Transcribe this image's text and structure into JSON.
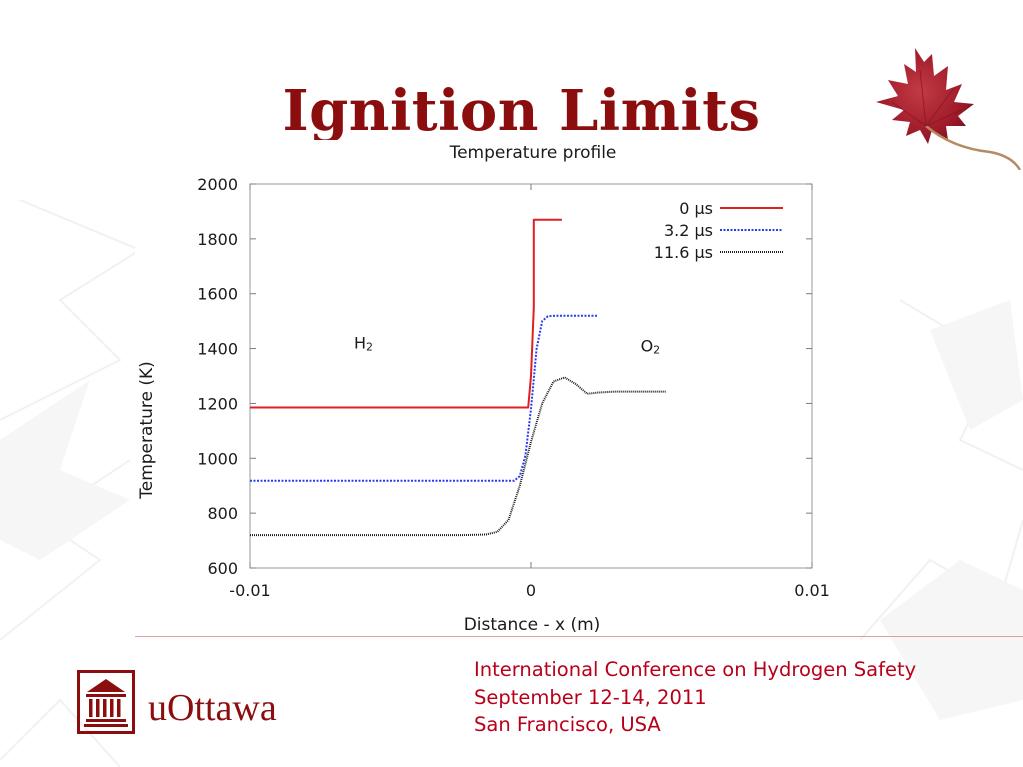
{
  "slide": {
    "title": "Ignition Limits",
    "conference_lines": [
      "International Conference on Hydrogen Safety",
      "September 12-14, 2011",
      "San Francisco, USA"
    ],
    "logo_text": "uOttawa",
    "accent_color": "#8b0d0d",
    "conference_text_color": "#b8001a"
  },
  "chart_data": {
    "type": "line",
    "title": "Temperature profile",
    "xlabel": "Distance - x (m)",
    "ylabel": "Temperature (K)",
    "xlim": [
      -0.01,
      0.01
    ],
    "ylim": [
      600,
      2000
    ],
    "xticks": [
      -0.01,
      0,
      0.01
    ],
    "xtick_labels": [
      "-0.01",
      "0",
      "0.01"
    ],
    "yticks": [
      600,
      800,
      1000,
      1200,
      1400,
      1600,
      1800,
      2000
    ],
    "ytick_labels": [
      "600",
      "800",
      "1000",
      "1200",
      "1400",
      "1600",
      "1800",
      "2000"
    ],
    "grid": false,
    "legend_position": "top-right",
    "annotations": [
      {
        "base": "H",
        "sub": "2",
        "x": -0.0063,
        "y": 1400
      },
      {
        "base": "O",
        "sub": "2",
        "x": 0.0039,
        "y": 1390
      }
    ],
    "series": [
      {
        "name": "0 µs",
        "color": "#e02020",
        "dash": "",
        "x": [
          -0.01,
          -0.0001,
          0.0,
          0.0001,
          0.0001,
          0.0011
        ],
        "y": [
          1185,
          1185,
          1300,
          1550,
          1870,
          1870
        ]
      },
      {
        "name": "3.2 µs",
        "color": "#2a3cf0",
        "dash": "2,1.5",
        "x": [
          -0.01,
          -0.0006,
          -0.0004,
          -0.0002,
          0.0,
          0.0002,
          0.0004,
          0.0006,
          0.0009,
          0.0024
        ],
        "y": [
          918,
          918,
          935,
          1010,
          1180,
          1400,
          1500,
          1518,
          1520,
          1520
        ]
      },
      {
        "name": "11.6 µs",
        "color": "#1a1a1a",
        "dash": "1,1",
        "x": [
          -0.01,
          -0.0024,
          -0.0016,
          -0.0012,
          -0.0008,
          -0.0004,
          0.0,
          0.0004,
          0.0008,
          0.0012,
          0.0016,
          0.002,
          0.0024,
          0.003,
          0.0048
        ],
        "y": [
          720,
          720,
          722,
          732,
          775,
          900,
          1060,
          1200,
          1280,
          1295,
          1270,
          1235,
          1240,
          1243,
          1243
        ]
      }
    ]
  }
}
